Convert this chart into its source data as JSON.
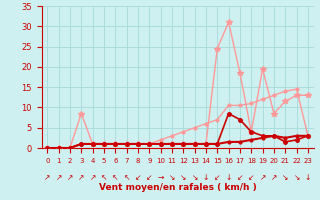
{
  "x_labels": [
    0,
    1,
    2,
    3,
    4,
    5,
    6,
    7,
    8,
    9,
    10,
    11,
    12,
    13,
    14,
    15,
    16,
    17,
    18,
    19,
    20,
    21,
    22,
    23
  ],
  "xlabel": "Vent moyen/en rafales ( km/h )",
  "background_color": "#cff0f0",
  "grid_color": "#aadddd",
  "line_dark_red": "#cc0000",
  "line_light_red": "#ff9999",
  "line1_y": [
    0,
    0,
    0,
    1,
    1,
    1,
    1,
    1,
    1,
    1,
    1,
    1,
    1,
    1,
    1,
    1,
    8.5,
    7,
    4,
    3,
    3,
    1.5,
    2,
    3
  ],
  "line2_y": [
    0,
    0,
    0,
    8.5,
    1,
    1,
    1,
    1,
    1,
    1,
    1,
    1,
    1,
    1,
    1,
    24.5,
    31,
    18.5,
    4,
    19.5,
    8.5,
    11.5,
    13,
    13
  ],
  "line3_y": [
    0,
    0,
    0,
    1,
    1,
    1,
    1,
    1,
    1,
    1,
    2,
    3,
    4,
    5,
    6,
    7,
    10.5,
    10.5,
    11,
    12,
    13,
    14,
    14.5,
    3
  ],
  "line4_y": [
    0,
    0,
    0,
    1,
    1,
    1,
    1,
    1,
    1,
    1,
    1,
    1,
    1,
    1,
    1,
    1,
    1.5,
    1.5,
    2,
    2.5,
    3,
    2.5,
    3,
    3
  ],
  "ylim": [
    0,
    35
  ],
  "yticks": [
    0,
    5,
    10,
    15,
    20,
    25,
    30,
    35
  ],
  "wind_arrows": [
    "↗",
    "↗",
    "↗",
    "↗",
    "↗",
    "↖",
    "↖",
    "↖",
    "↙",
    "↙",
    "→",
    "↘",
    "↘",
    "↘",
    "↓",
    "↙",
    "↓",
    "↙",
    "↙",
    "↗",
    "↗",
    "↘",
    "↘",
    "↓"
  ]
}
